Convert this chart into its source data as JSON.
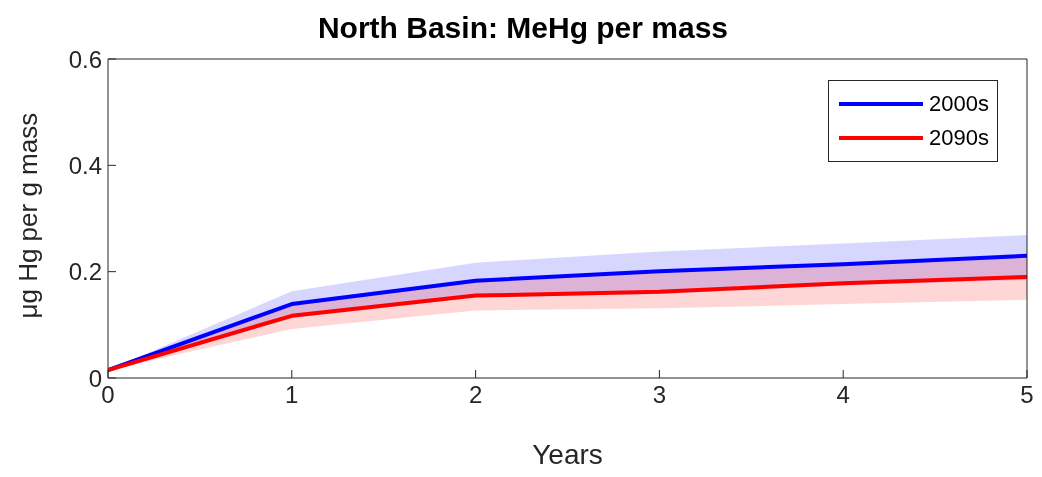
{
  "chart_data": {
    "type": "line",
    "title": "North Basin: MeHg per mass",
    "xlabel": "Years",
    "ylabel": "μg Hg per g mass",
    "x": [
      0,
      1,
      2,
      3,
      4,
      5
    ],
    "series": [
      {
        "name": "2000s",
        "color": "#0000ff",
        "values": [
          0.015,
          0.139,
          0.183,
          0.201,
          0.214,
          0.23
        ],
        "lower": [
          0.015,
          0.113,
          0.152,
          0.158,
          0.174,
          0.185
        ],
        "upper": [
          0.015,
          0.163,
          0.217,
          0.238,
          0.253,
          0.269
        ]
      },
      {
        "name": "2090s",
        "color": "#ff0000",
        "values": [
          0.015,
          0.117,
          0.155,
          0.162,
          0.178,
          0.19
        ],
        "lower": [
          0.015,
          0.092,
          0.127,
          0.131,
          0.139,
          0.147
        ],
        "upper": [
          0.015,
          0.14,
          0.18,
          0.2,
          0.213,
          0.228
        ]
      }
    ],
    "xlim": [
      0,
      5
    ],
    "xticks": [
      0,
      1,
      2,
      3,
      4,
      5
    ],
    "ylim": [
      0,
      0.6
    ],
    "yticks": [
      0,
      0.2,
      0.4,
      0.6
    ],
    "legend": "top right",
    "grid": false,
    "marker": "none",
    "line_style": "solid"
  }
}
